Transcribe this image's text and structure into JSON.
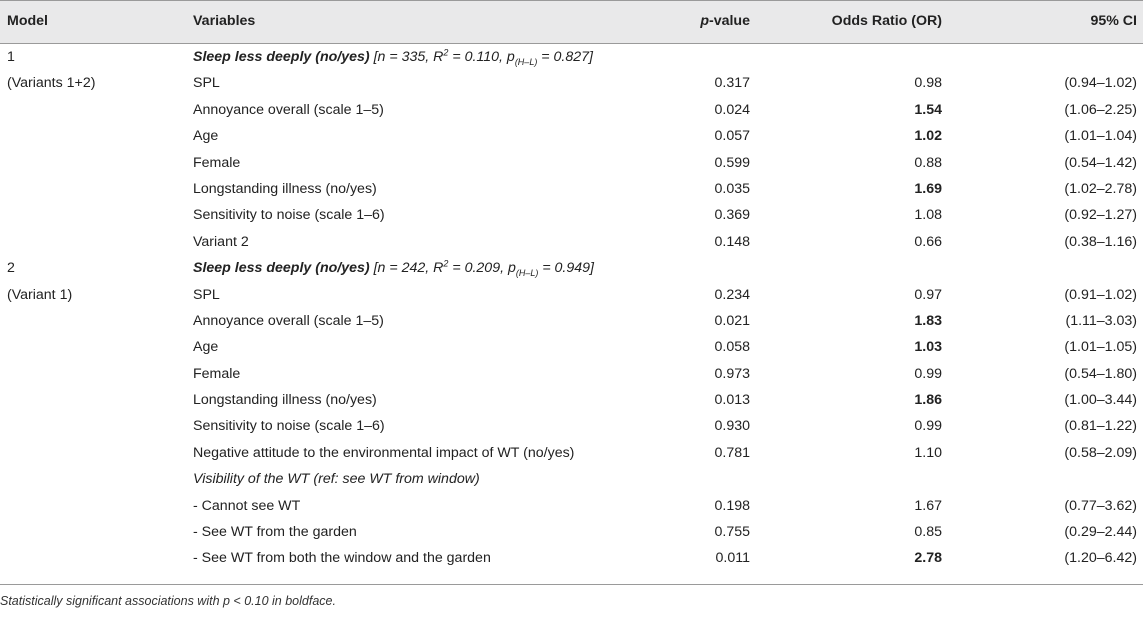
{
  "header": {
    "model": "Model",
    "variables": "Variables",
    "p_value_italic": "p",
    "p_value_rest": "-value",
    "odds_ratio": "Odds Ratio (OR)",
    "ci": "95% CI"
  },
  "rows": [
    {
      "model": "1",
      "outcome_bold": "Sleep less deeply (no/yes)",
      "outcome_n": " [n = 335, R",
      "outcome_sup": "2",
      "outcome_r2": " = 0.110, p",
      "outcome_sub": "(H–L)",
      "outcome_end": " = 0.827]"
    },
    {
      "model": "(Variants 1+2)",
      "variable": "SPL",
      "p": "0.317",
      "or": "0.98",
      "or_bold": false,
      "ci": "(0.94–1.02)"
    },
    {
      "variable": "Annoyance overall (scale 1–5)",
      "p": "0.024",
      "or": "1.54",
      "or_bold": true,
      "ci": "(1.06–2.25)"
    },
    {
      "variable": "Age",
      "p": "0.057",
      "or": "1.02",
      "or_bold": true,
      "ci": "(1.01–1.04)"
    },
    {
      "variable": "Female",
      "p": "0.599",
      "or": "0.88",
      "or_bold": false,
      "ci": "(0.54–1.42)"
    },
    {
      "variable": "Longstanding illness (no/yes)",
      "p": "0.035",
      "or": "1.69",
      "or_bold": true,
      "ci": "(1.02–2.78)"
    },
    {
      "variable": "Sensitivity to noise (scale 1–6)",
      "p": "0.369",
      "or": "1.08",
      "or_bold": false,
      "ci": "(0.92–1.27)"
    },
    {
      "variable": "Variant 2",
      "p": "0.148",
      "or": "0.66",
      "or_bold": false,
      "ci": "(0.38–1.16)"
    },
    {
      "model": "2",
      "outcome_bold": "Sleep less deeply (no/yes)",
      "outcome_n": " [n = 242, R",
      "outcome_sup": "2",
      "outcome_r2": " = 0.209, p",
      "outcome_sub": "(H–L)",
      "outcome_end": " = 0.949]"
    },
    {
      "model": "(Variant 1)",
      "variable": "SPL",
      "p": "0.234",
      "or": "0.97",
      "or_bold": false,
      "ci": "(0.91–1.02)"
    },
    {
      "variable": "Annoyance overall (scale 1–5)",
      "p": "0.021",
      "or": "1.83",
      "or_bold": true,
      "ci": "(1.11–3.03)"
    },
    {
      "variable": "Age",
      "p": "0.058",
      "or": "1.03",
      "or_bold": true,
      "ci": "(1.01–1.05)"
    },
    {
      "variable": "Female",
      "p": "0.973",
      "or": "0.99",
      "or_bold": false,
      "ci": "(0.54–1.80)"
    },
    {
      "variable": "Longstanding illness (no/yes)",
      "p": "0.013",
      "or": "1.86",
      "or_bold": true,
      "ci": "(1.00–3.44)"
    },
    {
      "variable": "Sensitivity to noise (scale 1–6)",
      "p": "0.930",
      "or": "0.99",
      "or_bold": false,
      "ci": "(0.81–1.22)"
    },
    {
      "variable": "Negative attitude to the environmental impact of WT (no/yes)",
      "p": "0.781",
      "or": "1.10",
      "or_bold": false,
      "ci": "(0.58–2.09)"
    },
    {
      "variable": "Visibility of the WT (ref: see WT from window)",
      "variable_italic": true
    },
    {
      "variable": "-  Cannot see WT",
      "p": "0.198",
      "or": "1.67",
      "or_bold": false,
      "ci": "(0.77–3.62)"
    },
    {
      "variable": "-  See WT from the garden",
      "p": "0.755",
      "or": "0.85",
      "or_bold": false,
      "ci": "(0.29–2.44)"
    },
    {
      "variable": "-  See WT from both the window and the garden",
      "p": "0.011",
      "or": "2.78",
      "or_bold": true,
      "ci": "(1.20–6.42)"
    }
  ],
  "footnote": "Statistically significant associations with p < 0.10 in boldface."
}
